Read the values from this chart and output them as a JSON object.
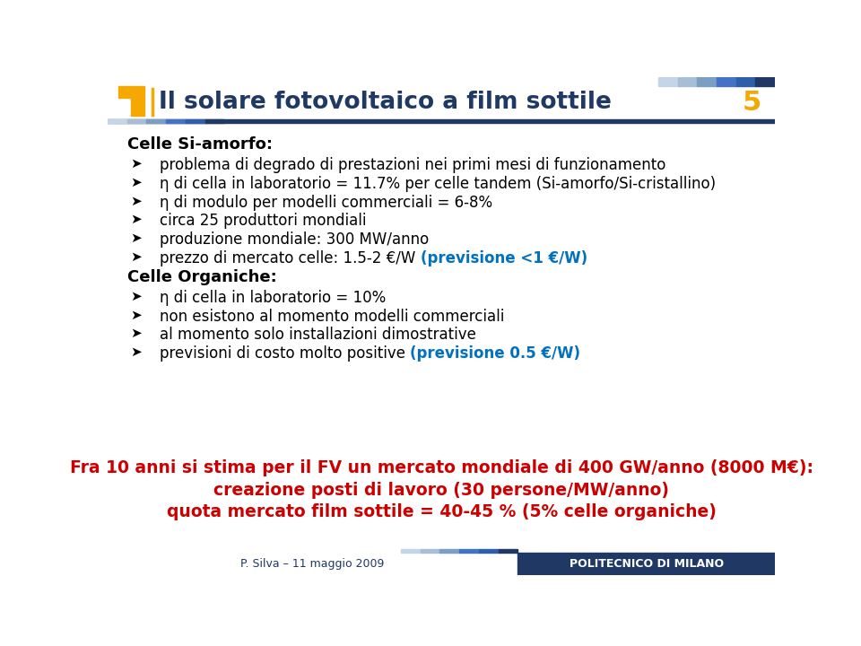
{
  "title": "Il solare fotovoltaico a film sottile",
  "slide_number": "5",
  "bg_color": "#ffffff",
  "title_color": "#1f3864",
  "title_fontsize": 19,
  "header_bar_color": "#1f3864",
  "header_accent_color": "#f5a800",
  "footer_bar_color": "#1f3864",
  "footer_text": "P. Silva – 11 maggio 2009",
  "footer_right": "POLITECNICO DI MILANO",
  "section1_title": "Celle Si-amorfo:",
  "section1_bullets": [
    "problema di degrado di prestazioni nei primi mesi di funzionamento",
    "η di cella in laboratorio = 11.7% per celle tandem (Si-amorfo/Si-cristallino)",
    "η di modulo per modelli commerciali = 6-8%",
    "circa 25 produttori mondiali",
    "produzione mondiale: 300 MW/anno"
  ],
  "section1_bullet6_normal": "prezzo di mercato celle: 1.5-2 €/W ",
  "section1_bullet6_colored": "(previsione <1 €/W)",
  "section2_title": "Celle Organiche:",
  "section2_bullets": [
    "η di cella in laboratorio = 10%",
    "non esistono al momento modelli commerciali",
    "al momento solo installazioni dimostrative"
  ],
  "section2_bullet4_normal": "previsioni di costo molto positive ",
  "section2_bullet4_colored": "(previsione 0.5 €/W)",
  "bottom_line1": "Fra 10 anni si stima per il FV un mercato mondiale di 400 GW/anno (8000 M€):",
  "bottom_line2": "creazione posti di lavoro (30 persone/MW/anno)",
  "bottom_line3": "quota mercato film sottile = 40-45 % (5% celle organiche)",
  "bottom_color": "#cc0000",
  "bullet_color": "#000000",
  "highlight_color": "#0070c0",
  "section_title_color": "#000000",
  "content_fontsize": 12,
  "section_title_fontsize": 13
}
